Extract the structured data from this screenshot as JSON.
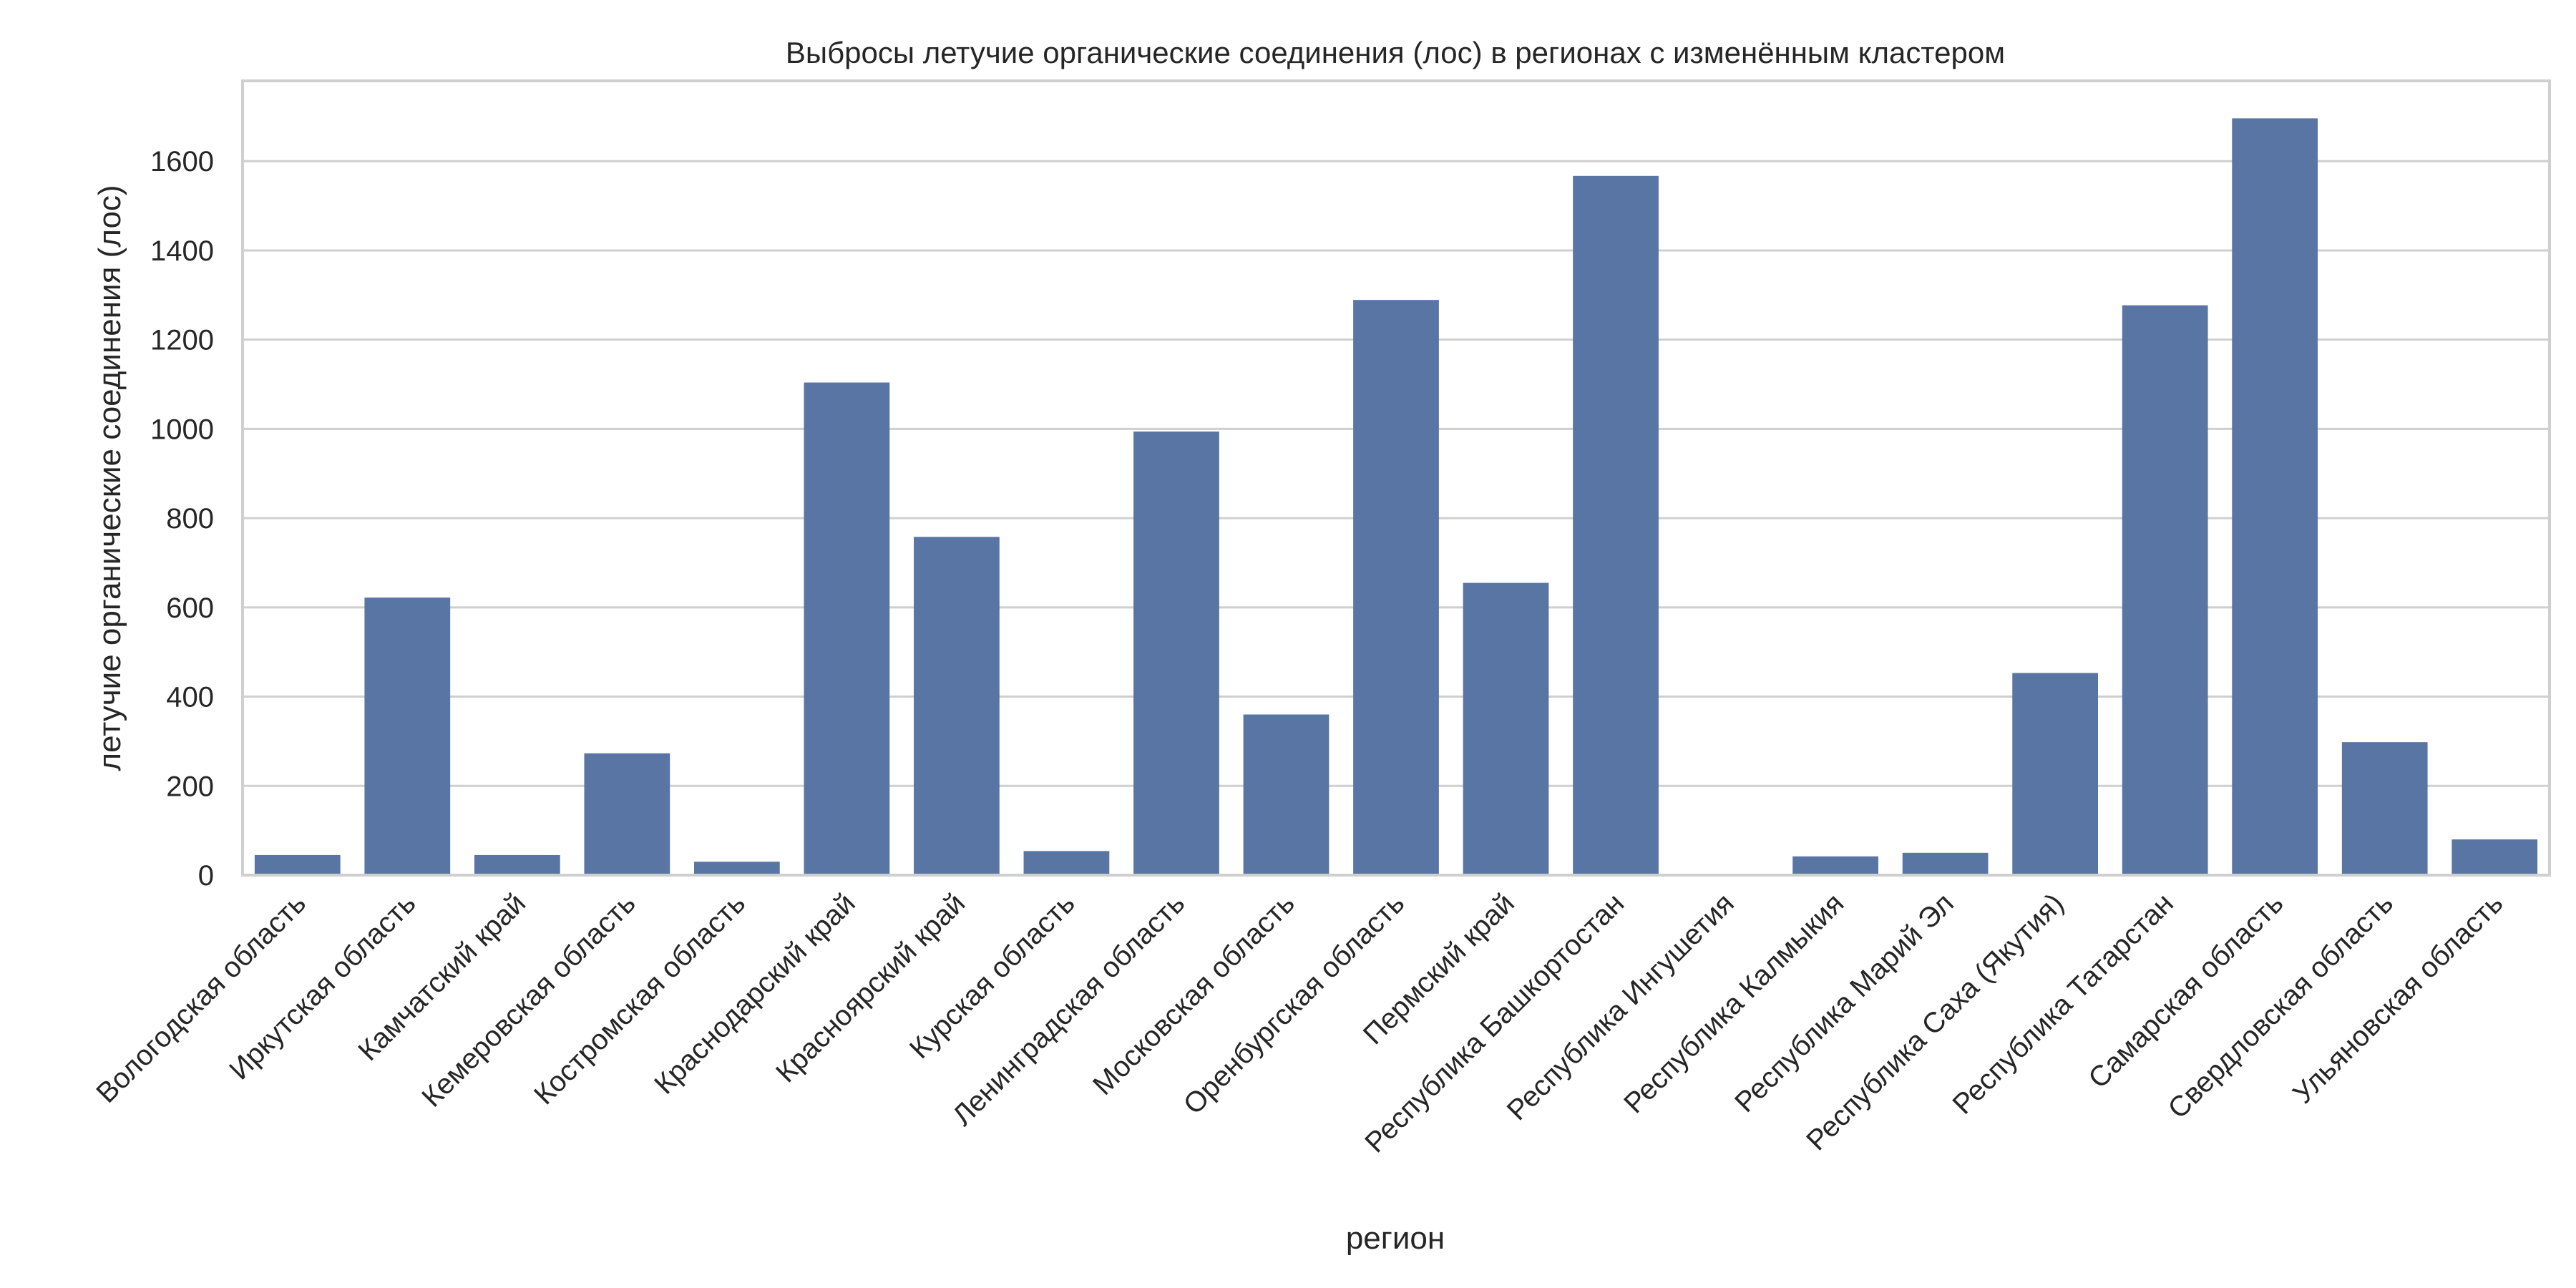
{
  "chart_data": {
    "type": "bar",
    "title": "Выбросы летучие органические соединения (лос) в регионах с изменённым кластером",
    "xlabel": "регион",
    "ylabel": "летучие органические соединения (лос)",
    "ylim": [
      0,
      1780
    ],
    "yticks": [
      0,
      200,
      400,
      600,
      800,
      1000,
      1200,
      1400,
      1600
    ],
    "grid": true,
    "bar_color": "#5975a4",
    "categories": [
      "Вологодская область",
      "Иркутская область",
      "Камчатский край",
      "Кемеровская область",
      "Костромская область",
      "Краснодарский край",
      "Красноярский край",
      "Курская область",
      "Ленинградская область",
      "Московская область",
      "Оренбургская область",
      "Пермский край",
      "Республика Башкортостан",
      "Республика Ингушетия",
      "Республика Калмыкия",
      "Республика Марий Эл",
      "Республика Саха (Якутия)",
      "Республика Татарстан",
      "Самарская область",
      "Свердловская область",
      "Ульяновская область"
    ],
    "values": [
      45,
      622,
      45,
      273,
      30,
      1104,
      758,
      54,
      994,
      360,
      1289,
      655,
      1567,
      0,
      42,
      50,
      453,
      1277,
      1696,
      298,
      80
    ]
  }
}
